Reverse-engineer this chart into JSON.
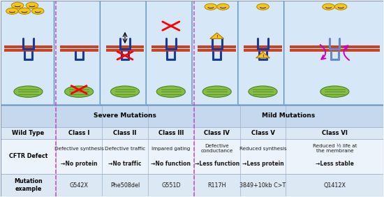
{
  "fig_width": 5.5,
  "fig_height": 2.82,
  "dpi": 100,
  "bg_color": "#f0f4f8",
  "cell_bg": "#d6e8f7",
  "cell_border": "#5a8fc0",
  "table_header_bg": "#c5d8ee",
  "table_row1_bg": "#dce8f4",
  "table_row2_bg": "#edf3fa",
  "table_row3_bg": "#dce8f4",
  "divider_color": "#cc44cc",
  "severe_label": "Severe Mutations",
  "mild_label": "Mild Mutations",
  "col0_label": "Wild Type",
  "col_labels": [
    "Class I",
    "Class II",
    "Class III",
    "Class IV",
    "Class V",
    "Class VI"
  ],
  "row_labels": [
    "CFTR Defect",
    "Mutation\nexample"
  ],
  "defect_descriptions": [
    "Defective synthesis",
    "Defective traffic",
    "Impared gating",
    "Defective\nconductance",
    "Reduced synthesis",
    "Reduced ½ life at\nthe membrane"
  ],
  "defect_arrows": [
    "→No protein",
    "→No traffic",
    "→No function",
    "→Less function",
    "→Less protein",
    "→Less stable"
  ],
  "mutation_examples": [
    "G542X",
    "Phe508del",
    "G551D",
    "R117H",
    "3849+10kb C>T",
    "Q1412X"
  ],
  "text_dark": "#1a1a1a",
  "bold_text": "#000000",
  "col_bounds": [
    0.0,
    0.145,
    0.265,
    0.385,
    0.505,
    0.625,
    0.745,
    1.0
  ]
}
